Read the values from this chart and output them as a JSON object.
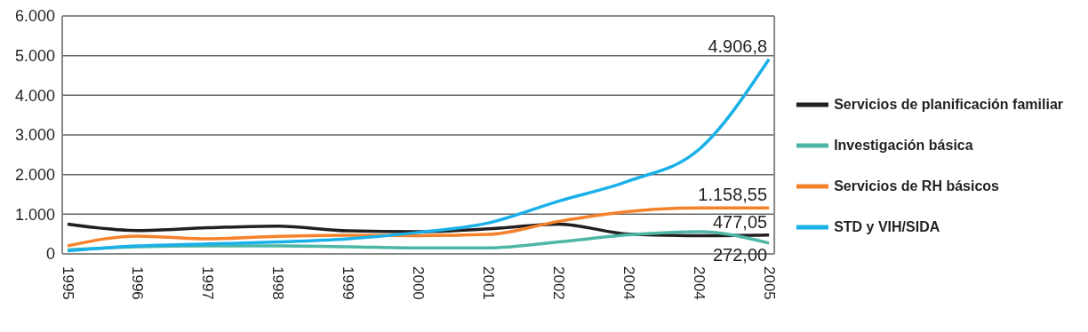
{
  "chart_data": {
    "type": "line",
    "categories": [
      "1995",
      "1996",
      "1997",
      "1998",
      "1999",
      "2000",
      "2001",
      "2002",
      "2004",
      "2004",
      "2005"
    ],
    "series": [
      {
        "name": "Servicios de planificación familiar",
        "color": "#231f20",
        "values": [
          750,
          590,
          660,
          700,
          580,
          560,
          630,
          750,
          500,
          460,
          477.05
        ]
      },
      {
        "name": "Investigación básica",
        "color": "#4db6a4",
        "values": [
          100,
          180,
          200,
          200,
          180,
          150,
          150,
          300,
          480,
          560,
          272
        ]
      },
      {
        "name": "Servicios de RH básicos",
        "color": "#f5822a",
        "values": [
          200,
          450,
          380,
          440,
          470,
          460,
          490,
          820,
          1070,
          1160,
          1158.55
        ]
      },
      {
        "name": "STD y VIH/SIDA",
        "color": "#1ab0e8",
        "values": [
          80,
          200,
          250,
          300,
          380,
          540,
          780,
          1330,
          1840,
          2630,
          4906.8
        ]
      }
    ],
    "ylim": [
      0,
      6000
    ],
    "yticks": [
      0,
      {
        "value": 1000,
        "label": "1.000"
      },
      {
        "value": 2000,
        "label": "2.000"
      },
      {
        "value": 3000,
        "label": "3.000"
      },
      {
        "value": 4000,
        "label": "4.000"
      },
      {
        "value": 5000,
        "label": "5.000"
      },
      {
        "value": 6000,
        "label": "6.000"
      }
    ],
    "grid": "y",
    "legend": "right",
    "marker": "none",
    "line_style": "solid",
    "annotations": [
      {
        "text": "4.906,8",
        "x": "2005",
        "y": 4906.8
      },
      {
        "text": "1.158,55",
        "x": "2005",
        "y": 1158.55
      },
      {
        "text": "477,05",
        "x": "2005",
        "y": 477.05
      },
      {
        "text": "272,00",
        "x": "2005",
        "y": 272
      }
    ]
  }
}
